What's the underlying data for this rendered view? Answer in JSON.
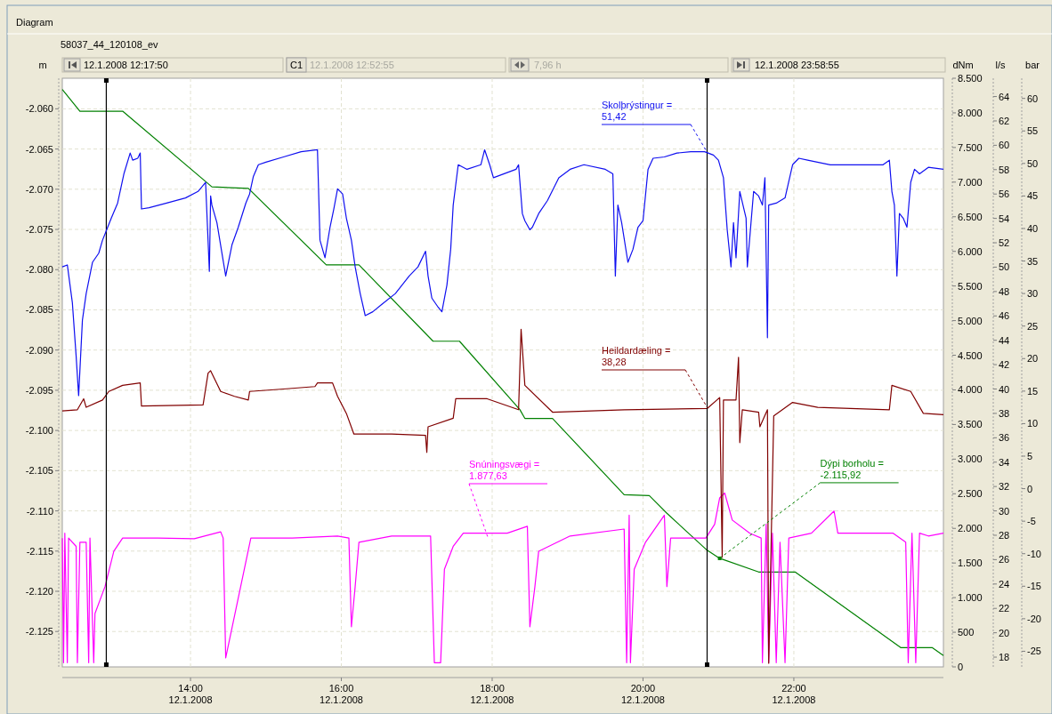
{
  "chart_data": [
    {
      "type": "line",
      "title": "58037_44_120108_ev",
      "xlim": [
        "2008-01-12T12:18",
        "2008-01-12T23:59"
      ],
      "xticks": [
        {
          "value": "2008-01-12T14:00",
          "label": "14:00\n12.1.2008"
        },
        {
          "value": "2008-01-12T16:00",
          "label": "16:00\n12.1.2008"
        },
        {
          "value": "2008-01-12T18:00",
          "label": "18:00\n12.1.2008"
        },
        {
          "value": "2008-01-12T20:00",
          "label": "20:00\n12.1.2008"
        },
        {
          "value": "2008-01-12T22:00",
          "label": "22:00\n12.1.2008"
        }
      ],
      "ylabel": "m",
      "ylim": [
        -2129.4,
        -2056.2
      ],
      "yticks": [
        {
          "value": -2060,
          "label": "-2.060"
        },
        {
          "value": -2065,
          "label": "-2.065"
        },
        {
          "value": -2070,
          "label": "-2.070"
        },
        {
          "value": -2075,
          "label": "-2.075"
        },
        {
          "value": -2080,
          "label": "-2.080"
        },
        {
          "value": -2085,
          "label": "-2.085"
        },
        {
          "value": -2090,
          "label": "-2.090"
        },
        {
          "value": -2095,
          "label": "-2.095"
        },
        {
          "value": -2100,
          "label": "-2.100"
        },
        {
          "value": -2105,
          "label": "-2.105"
        },
        {
          "value": -2110,
          "label": "-2.110"
        },
        {
          "value": -2115,
          "label": "-2.115"
        },
        {
          "value": -2120,
          "label": "-2.120"
        },
        {
          "value": -2125,
          "label": "-2.125"
        }
      ],
      "y2label": "dNm",
      "y2lim": [
        0,
        8500
      ],
      "y2ticks": [
        0,
        500,
        {
          "value": 1000,
          "label": "1.000"
        },
        {
          "value": 1500,
          "label": "1.500"
        },
        {
          "value": 2000,
          "label": "2.000"
        },
        {
          "value": 2500,
          "label": "2.500"
        },
        {
          "value": 3000,
          "label": "3.000"
        },
        {
          "value": 3500,
          "label": "3.500"
        },
        {
          "value": 4000,
          "label": "4.000"
        },
        {
          "value": 4500,
          "label": "4.500"
        },
        {
          "value": 5000,
          "label": "5.000"
        },
        {
          "value": 5500,
          "label": "5.500"
        },
        {
          "value": 6000,
          "label": "6.000"
        },
        {
          "value": 6500,
          "label": "6.500"
        },
        {
          "value": 7000,
          "label": "7.000"
        },
        {
          "value": 7500,
          "label": "7.500"
        },
        {
          "value": 8000,
          "label": "8.000"
        },
        {
          "value": 8500,
          "label": "8.500"
        }
      ],
      "y3label": "l/s",
      "y3lim": [
        17.2,
        65.5
      ],
      "y3ticks": [
        18,
        20,
        22,
        24,
        26,
        28,
        30,
        32,
        34,
        36,
        38,
        40,
        42,
        44,
        46,
        48,
        50,
        52,
        54,
        56,
        58,
        60,
        62,
        64
      ],
      "grid": true,
      "marker": "none",
      "line_style": "solid",
      "series": [
        {
          "axis": "y3",
          "color": "#800000",
          "x": [
            "2008-01-12T12:18",
            "2008-01-12T12:30",
            "2008-01-12T12:35",
            "2008-01-12T12:37",
            "2008-01-12T12:50",
            "2008-01-12T12:55",
            "2008-01-12T13:06",
            "2008-01-12T13:20",
            "2008-01-12T13:21",
            "2008-01-12T14:10",
            "2008-01-12T14:14",
            "2008-01-12T14:16",
            "2008-01-12T14:24",
            "2008-01-12T14:35",
            "2008-01-12T14:46",
            "2008-01-12T14:47",
            "2008-01-12T15:14",
            "2008-01-12T15:39",
            "2008-01-12T15:41",
            "2008-01-12T15:53",
            "2008-01-12T15:57",
            "2008-01-12T16:04",
            "2008-01-12T16:10",
            "2008-01-12T16:40",
            "2008-01-12T17:07",
            "2008-01-12T17:08",
            "2008-01-12T17:09",
            "2008-01-12T17:29",
            "2008-01-12T17:31",
            "2008-01-12T17:56",
            "2008-01-12T18:21",
            "2008-01-12T18:23",
            "2008-01-12T18:26",
            "2008-01-12T18:48",
            "2008-01-12T19:45",
            "2008-01-12T20:51",
            "2008-01-12T21:01",
            "2008-01-12T21:03",
            "2008-01-12T21:04",
            "2008-01-12T21:14",
            "2008-01-12T21:16",
            "2008-01-12T21:17",
            "2008-01-12T21:19",
            "2008-01-12T21:32",
            "2008-01-12T21:33",
            "2008-01-12T21:39",
            "2008-01-12T21:40",
            "2008-01-12T21:44",
            "2008-01-12T21:59",
            "2008-01-12T22:19",
            "2008-01-12T23:16",
            "2008-01-12T23:18",
            "2008-01-12T23:33",
            "2008-01-12T23:43",
            "2008-01-12T23:59"
          ],
          "values": [
            38.2,
            38.3,
            39.2,
            38.5,
            39.1,
            39.8,
            40.3,
            40.5,
            38.6,
            38.7,
            41.3,
            41.5,
            39.8,
            39.4,
            39.1,
            39.8,
            40.0,
            40.2,
            40.5,
            40.5,
            39.4,
            38.0,
            36.3,
            36.3,
            36.2,
            34.8,
            36.9,
            37.6,
            39.2,
            39.2,
            38.3,
            44.9,
            40.3,
            38.1,
            38.3,
            38.4,
            39.3,
            26.2,
            39.1,
            39.1,
            42.6,
            35.6,
            38.3,
            38.1,
            36.9,
            38.3,
            17.5,
            37.8,
            38.9,
            38.5,
            38.3,
            40.3,
            39.8,
            38.0,
            37.9
          ]
        },
        {
          "axis": "y2",
          "color": "#ff00ff",
          "x": [
            "2008-01-12T12:18",
            "2008-01-12T12:19",
            "2008-01-12T12:20",
            "2008-01-12T12:22",
            "2008-01-12T12:23",
            "2008-01-12T12:29",
            "2008-01-12T12:30",
            "2008-01-12T12:32",
            "2008-01-12T12:37",
            "2008-01-12T12:39",
            "2008-01-12T12:40",
            "2008-01-12T12:43",
            "2008-01-12T12:44",
            "2008-01-12T12:52",
            "2008-01-12T12:59",
            "2008-01-12T13:06",
            "2008-01-12T13:34",
            "2008-01-12T14:03",
            "2008-01-12T14:24",
            "2008-01-12T14:26",
            "2008-01-12T14:28",
            "2008-01-12T14:48",
            "2008-01-12T15:21",
            "2008-01-12T15:57",
            "2008-01-12T16:06",
            "2008-01-12T16:08",
            "2008-01-12T16:11",
            "2008-01-12T16:14",
            "2008-01-12T16:40",
            "2008-01-12T17:11",
            "2008-01-12T17:14",
            "2008-01-12T17:19",
            "2008-01-12T17:22",
            "2008-01-12T17:29",
            "2008-01-12T17:37",
            "2008-01-12T18:12",
            "2008-01-12T18:28",
            "2008-01-12T18:30",
            "2008-01-12T18:34",
            "2008-01-12T18:37",
            "2008-01-12T19:02",
            "2008-01-12T19:45",
            "2008-01-12T19:47",
            "2008-01-12T19:49",
            "2008-01-12T19:50",
            "2008-01-12T19:53",
            "2008-01-12T20:02",
            "2008-01-12T20:17",
            "2008-01-12T20:19",
            "2008-01-12T20:22",
            "2008-01-12T20:50",
            "2008-01-12T20:57",
            "2008-01-12T21:01",
            "2008-01-12T21:05",
            "2008-01-12T21:11",
            "2008-01-12T21:25",
            "2008-01-12T21:34",
            "2008-01-12T21:35",
            "2008-01-12T21:38",
            "2008-01-12T21:40",
            "2008-01-12T21:43",
            "2008-01-12T21:46",
            "2008-01-12T21:49",
            "2008-01-12T21:53",
            "2008-01-12T21:56",
            "2008-01-12T22:14",
            "2008-01-12T22:32",
            "2008-01-12T22:35",
            "2008-01-12T23:19",
            "2008-01-12T23:29",
            "2008-01-12T23:31",
            "2008-01-12T23:34",
            "2008-01-12T23:37",
            "2008-01-12T23:40",
            "2008-01-12T23:47",
            "2008-01-12T23:59"
          ],
          "values": [
            1860,
            60,
            1930,
            60,
            1860,
            1740,
            60,
            1800,
            1800,
            60,
            1860,
            60,
            770,
            1160,
            1670,
            1860,
            1860,
            1850,
            1950,
            1860,
            130,
            1860,
            1860,
            1890,
            1860,
            580,
            1160,
            1800,
            1890,
            1890,
            60,
            60,
            1410,
            1740,
            1930,
            1930,
            2030,
            580,
            1160,
            1670,
            1890,
            1990,
            60,
            2190,
            60,
            1410,
            1800,
            2190,
            1160,
            1860,
            1860,
            2060,
            2440,
            2510,
            2120,
            1930,
            1860,
            60,
            2060,
            60,
            1930,
            60,
            1800,
            60,
            1860,
            1930,
            2250,
            1930,
            1930,
            1800,
            60,
            1930,
            60,
            1930,
            1890,
            1930
          ]
        },
        {
          "axis": "y",
          "color": "#008000",
          "x": [
            "2008-01-12T12:18",
            "2008-01-12T12:32",
            "2008-01-12T13:06",
            "2008-01-12T14:17",
            "2008-01-12T14:46",
            "2008-01-12T15:48",
            "2008-01-12T16:14",
            "2008-01-12T17:13",
            "2008-01-12T17:34",
            "2008-01-12T18:22",
            "2008-01-12T18:26",
            "2008-01-12T18:48",
            "2008-01-12T19:45",
            "2008-01-12T20:05",
            "2008-01-12T20:19",
            "2008-01-12T20:51",
            "2008-01-12T21:01",
            "2008-01-12T21:32",
            "2008-01-12T22:01",
            "2008-01-12T23:25",
            "2008-01-12T23:50",
            "2008-01-12T23:59"
          ],
          "values": [
            -2057.6,
            -2060.3,
            -2060.3,
            -2069.7,
            -2069.9,
            -2079.4,
            -2079.4,
            -2088.9,
            -2088.9,
            -2097.4,
            -2098.5,
            -2098.5,
            -2108.0,
            -2108.1,
            -2110.3,
            -2114.9,
            -2115.9,
            -2117.6,
            -2117.6,
            -2127.0,
            -2127.0,
            -2128.0
          ]
        }
      ],
      "ref_lines": [
        {
          "axis": "x",
          "value": "2008-01-12T12:53",
          "color": "#000000"
        },
        {
          "axis": "x",
          "value": "2008-01-12T20:51",
          "color": "#000000"
        }
      ],
      "annotations": [
        "Diagram",
        "12.1.2008 12:17:50",
        "C1",
        "12.1.2008 12:52:55",
        "7,96 h",
        "12.1.2008 23:58:55",
        "Heildardæling =\n38,28",
        "Snúningsvægi =\n1.877,63",
        {
          "text": "Dýpi borholu =\n-2.115,92",
          "x": "2008-01-12T21:01",
          "y": -2115.9
        }
      ]
    },
    {
      "type": "line",
      "tick_labels": "y",
      "xlim": [
        "2008-01-12T12:18",
        "2008-01-12T23:59"
      ],
      "ylabel": "bar",
      "ylim": [
        -27.4,
        63.1
      ],
      "yticks": [
        -25,
        -20,
        -15,
        -10,
        -5,
        0,
        5,
        10,
        15,
        20,
        25,
        30,
        35,
        40,
        45,
        50,
        55,
        60
      ],
      "marker": "none",
      "line_style": "solid",
      "series": [
        {
          "color": "#1010f0",
          "x": [
            "2008-01-12T12:18",
            "2008-01-12T12:22",
            "2008-01-12T12:26",
            "2008-01-12T12:29",
            "2008-01-12T12:31",
            "2008-01-12T12:34",
            "2008-01-12T12:37",
            "2008-01-12T12:42",
            "2008-01-12T12:47",
            "2008-01-12T12:50",
            "2008-01-12T12:57",
            "2008-01-12T13:02",
            "2008-01-12T13:07",
            "2008-01-12T13:12",
            "2008-01-12T13:14",
            "2008-01-12T13:18",
            "2008-01-12T13:20",
            "2008-01-12T13:21",
            "2008-01-12T13:27",
            "2008-01-12T13:41",
            "2008-01-12T13:56",
            "2008-01-12T14:06",
            "2008-01-12T14:12",
            "2008-01-12T14:15",
            "2008-01-12T14:16",
            "2008-01-12T14:17",
            "2008-01-12T14:21",
            "2008-01-12T14:28",
            "2008-01-12T14:33",
            "2008-01-12T14:38",
            "2008-01-12T14:44",
            "2008-01-12T14:47",
            "2008-01-12T14:50",
            "2008-01-12T14:54",
            "2008-01-12T15:00",
            "2008-01-12T15:14",
            "2008-01-12T15:28",
            "2008-01-12T15:41",
            "2008-01-12T15:43",
            "2008-01-12T15:47",
            "2008-01-12T15:51",
            "2008-01-12T15:54",
            "2008-01-12T15:57",
            "2008-01-12T16:01",
            "2008-01-12T16:04",
            "2008-01-12T16:08",
            "2008-01-12T16:11",
            "2008-01-12T16:15",
            "2008-01-12T16:19",
            "2008-01-12T16:25",
            "2008-01-12T16:32",
            "2008-01-12T16:43",
            "2008-01-12T16:54",
            "2008-01-12T17:01",
            "2008-01-12T17:07",
            "2008-01-12T17:09",
            "2008-01-12T17:12",
            "2008-01-12T17:17",
            "2008-01-12T17:20",
            "2008-01-12T17:24",
            "2008-01-12T17:27",
            "2008-01-12T17:29",
            "2008-01-12T17:33",
            "2008-01-12T17:40",
            "2008-01-12T17:51",
            "2008-01-12T17:54",
            "2008-01-12T17:58",
            "2008-01-12T18:01",
            "2008-01-12T18:19",
            "2008-01-12T18:21",
            "2008-01-12T18:24",
            "2008-01-12T18:26",
            "2008-01-12T18:30",
            "2008-01-12T18:32",
            "2008-01-12T18:37",
            "2008-01-12T18:44",
            "2008-01-12T18:53",
            "2008-01-12T19:02",
            "2008-01-12T19:13",
            "2008-01-12T19:30",
            "2008-01-12T19:36",
            "2008-01-12T19:38",
            "2008-01-12T19:40",
            "2008-01-12T19:43",
            "2008-01-12T19:48",
            "2008-01-12T19:52",
            "2008-01-12T19:56",
            "2008-01-12T20:00",
            "2008-01-12T20:04",
            "2008-01-12T20:08",
            "2008-01-12T20:17",
            "2008-01-12T20:27",
            "2008-01-12T20:38",
            "2008-01-12T20:49",
            "2008-01-12T20:56",
            "2008-01-12T21:00",
            "2008-01-12T21:04",
            "2008-01-12T21:07",
            "2008-01-12T21:10",
            "2008-01-12T21:12",
            "2008-01-12T21:14",
            "2008-01-12T21:17",
            "2008-01-12T21:22",
            "2008-01-12T21:23",
            "2008-01-12T21:28",
            "2008-01-12T21:32",
            "2008-01-12T21:35",
            "2008-01-12T21:37",
            "2008-01-12T21:39",
            "2008-01-12T21:40",
            "2008-01-12T21:46",
            "2008-01-12T21:53",
            "2008-01-12T21:59",
            "2008-01-12T22:04",
            "2008-01-12T22:11",
            "2008-01-12T22:29",
            "2008-01-12T22:50",
            "2008-01-12T23:11",
            "2008-01-12T23:16",
            "2008-01-12T23:18",
            "2008-01-12T23:20",
            "2008-01-12T23:22",
            "2008-01-12T23:24",
            "2008-01-12T23:27",
            "2008-01-12T23:30",
            "2008-01-12T23:33",
            "2008-01-12T23:36",
            "2008-01-12T23:40",
            "2008-01-12T23:47",
            "2008-01-12T23:59"
          ],
          "values": [
            34.1,
            34.4,
            28.6,
            20.4,
            14.3,
            25.9,
            30.0,
            34.8,
            36.2,
            38.2,
            41.6,
            43.9,
            48.4,
            51.6,
            50.5,
            50.8,
            51.6,
            43.0,
            43.2,
            43.9,
            44.7,
            45.7,
            47.1,
            33.4,
            45.0,
            43.6,
            40.9,
            32.7,
            37.5,
            40.2,
            43.9,
            45.3,
            48.0,
            49.8,
            50.2,
            51.0,
            51.8,
            52.1,
            38.2,
            35.5,
            40.2,
            43.0,
            46.1,
            45.3,
            41.6,
            38.2,
            34.1,
            30.0,
            26.6,
            27.2,
            28.3,
            30.0,
            32.7,
            34.1,
            36.5,
            32.7,
            29.3,
            27.9,
            27.2,
            31.3,
            36.8,
            43.6,
            49.8,
            49.1,
            49.8,
            52.1,
            49.8,
            47.8,
            49.1,
            49.8,
            42.3,
            41.2,
            39.8,
            40.2,
            42.3,
            44.3,
            47.8,
            49.1,
            49.8,
            49.1,
            48.4,
            32.7,
            43.6,
            40.9,
            34.8,
            36.8,
            40.2,
            41.2,
            49.1,
            50.8,
            51.0,
            51.6,
            51.8,
            51.8,
            51.3,
            50.5,
            47.8,
            39.8,
            34.1,
            40.9,
            35.5,
            45.7,
            41.6,
            34.1,
            45.7,
            45.0,
            43.6,
            47.8,
            23.2,
            43.6,
            43.9,
            44.7,
            49.8,
            50.8,
            50.5,
            49.8,
            49.8,
            49.8,
            50.5,
            45.7,
            43.6,
            32.7,
            42.3,
            41.6,
            40.2,
            47.1,
            49.1,
            48.4,
            49.4,
            49.1
          ]
        }
      ],
      "annotations": [
        "Skolþrýstingur =\n51,42"
      ]
    }
  ]
}
